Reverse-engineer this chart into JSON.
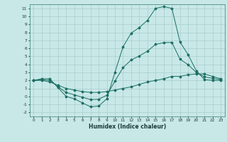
{
  "xlabel": "Humidex (Indice chaleur)",
  "xlim": [
    -0.5,
    23.5
  ],
  "ylim": [
    -2.5,
    11.5
  ],
  "xticks": [
    0,
    1,
    2,
    3,
    4,
    5,
    6,
    7,
    8,
    9,
    10,
    11,
    12,
    13,
    14,
    15,
    16,
    17,
    18,
    19,
    20,
    21,
    22,
    23
  ],
  "yticks": [
    -2,
    -1,
    0,
    1,
    2,
    3,
    4,
    5,
    6,
    7,
    8,
    9,
    10,
    11
  ],
  "line_color": "#1a6e62",
  "bg_color": "#c8e8e8",
  "grid_color": "#a8cccc",
  "hours": [
    0,
    1,
    2,
    3,
    4,
    5,
    6,
    7,
    8,
    9,
    10,
    11,
    12,
    13,
    14,
    15,
    16,
    17,
    18,
    19,
    20,
    21,
    22,
    23
  ],
  "max_vals": [
    2.0,
    2.2,
    2.2,
    1.1,
    0.0,
    -0.3,
    -0.8,
    -1.3,
    -1.2,
    -0.3,
    3.0,
    6.2,
    7.9,
    8.6,
    9.5,
    11.0,
    11.2,
    11.0,
    6.8,
    5.2,
    3.2,
    2.1,
    2.0,
    2.0
  ],
  "min_vals": [
    2.0,
    2.0,
    1.8,
    1.4,
    1.0,
    0.8,
    0.6,
    0.5,
    0.5,
    0.6,
    0.8,
    1.0,
    1.2,
    1.5,
    1.8,
    2.0,
    2.2,
    2.5,
    2.5,
    2.7,
    2.8,
    2.8,
    2.5,
    2.2
  ],
  "mean_vals": [
    2.0,
    2.1,
    2.0,
    1.2,
    0.5,
    0.2,
    -0.1,
    -0.4,
    -0.35,
    0.15,
    1.9,
    3.6,
    4.55,
    5.05,
    5.65,
    6.5,
    6.7,
    6.75,
    4.65,
    3.95,
    3.0,
    2.45,
    2.25,
    2.1
  ]
}
